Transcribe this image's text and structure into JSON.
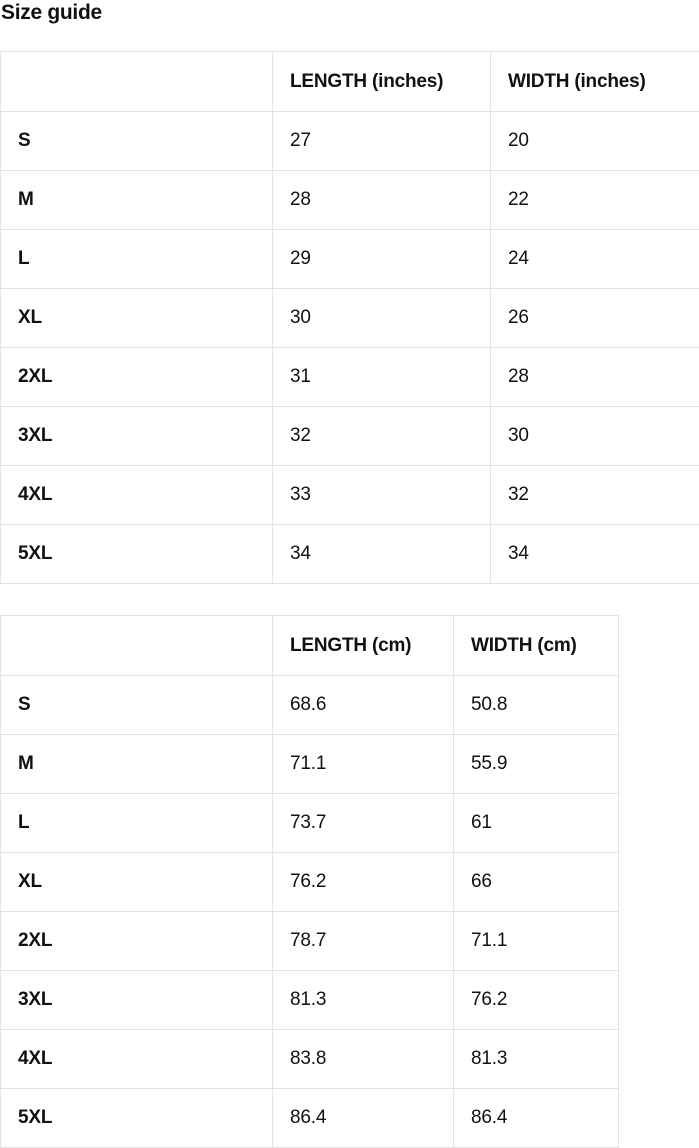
{
  "title": "Size guide",
  "colors": {
    "text": "#111111",
    "border": "#e3e3e3",
    "background": "#ffffff"
  },
  "chart_data": [
    {
      "type": "table",
      "name": "size-guide-inches",
      "headers": [
        "",
        "LENGTH (inches)",
        "WIDTH (inches)"
      ],
      "rows": [
        [
          "S",
          "27",
          "20"
        ],
        [
          "M",
          "28",
          "22"
        ],
        [
          "L",
          "29",
          "24"
        ],
        [
          "XL",
          "30",
          "26"
        ],
        [
          "2XL",
          "31",
          "28"
        ],
        [
          "3XL",
          "32",
          "30"
        ],
        [
          "4XL",
          "33",
          "32"
        ],
        [
          "5XL",
          "34",
          "34"
        ]
      ]
    },
    {
      "type": "table",
      "name": "size-guide-cm",
      "headers": [
        "",
        "LENGTH (cm)",
        "WIDTH (cm)"
      ],
      "rows": [
        [
          "S",
          "68.6",
          "50.8"
        ],
        [
          "M",
          "71.1",
          "55.9"
        ],
        [
          "L",
          "73.7",
          "61"
        ],
        [
          "XL",
          "76.2",
          "66"
        ],
        [
          "2XL",
          "78.7",
          "71.1"
        ],
        [
          "3XL",
          "81.3",
          "76.2"
        ],
        [
          "4XL",
          "83.8",
          "81.3"
        ],
        [
          "5XL",
          "86.4",
          "86.4"
        ]
      ]
    }
  ]
}
